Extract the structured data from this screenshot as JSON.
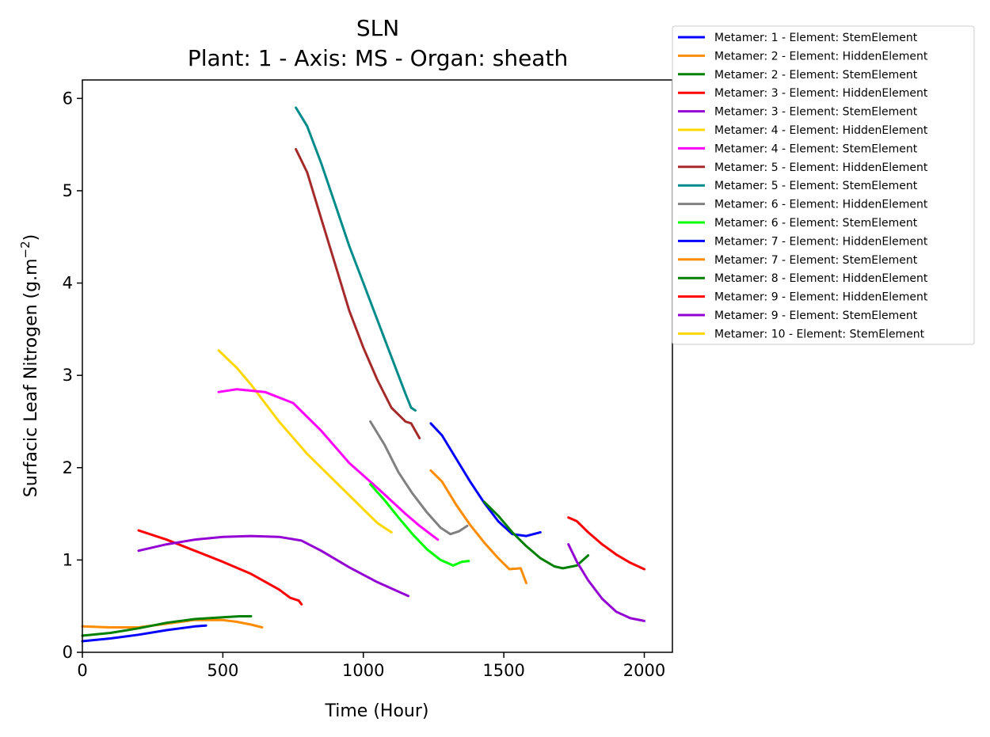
{
  "chart_data": {
    "type": "line",
    "title": "SLN",
    "subtitle": "Plant: 1 - Axis: MS - Organ: sheath",
    "xlabel": "Time (Hour)",
    "ylabel_main": "Surfacic Leaf Nitrogen (g.m",
    "ylabel_sup": "−2",
    "ylabel_end": ")",
    "xlim": [
      0,
      2100
    ],
    "ylim": [
      0,
      6.2
    ],
    "xticks": [
      0,
      500,
      1000,
      1500,
      2000
    ],
    "yticks": [
      0,
      1,
      2,
      3,
      4,
      5,
      6
    ],
    "grid": false,
    "legend_placement": "outside-top-right",
    "series": [
      {
        "name": "Metamer: 1 - Element: StemElement",
        "color": "#0000ff",
        "x": [
          0,
          100,
          200,
          300,
          400,
          440
        ],
        "y": [
          0.12,
          0.15,
          0.19,
          0.24,
          0.28,
          0.29
        ]
      },
      {
        "name": "Metamer: 2 - Element: HiddenElement",
        "color": "#ff8c00",
        "x": [
          0,
          100,
          200,
          300,
          400,
          500,
          550,
          600,
          640
        ],
        "y": [
          0.28,
          0.27,
          0.27,
          0.31,
          0.35,
          0.35,
          0.33,
          0.3,
          0.27
        ]
      },
      {
        "name": "Metamer: 2 - Element: StemElement",
        "color": "#008000",
        "x": [
          0,
          100,
          200,
          300,
          400,
          500,
          560,
          600
        ],
        "y": [
          0.18,
          0.21,
          0.26,
          0.32,
          0.36,
          0.38,
          0.39,
          0.39
        ]
      },
      {
        "name": "Metamer: 3 - Element: HiddenElement",
        "color": "#ff0000",
        "x": [
          200,
          300,
          400,
          500,
          600,
          700,
          740,
          770,
          780
        ],
        "y": [
          1.32,
          1.22,
          1.1,
          0.98,
          0.85,
          0.68,
          0.59,
          0.56,
          0.52
        ]
      },
      {
        "name": "Metamer: 3 - Element: StemElement",
        "color": "#9400d3",
        "x": [
          200,
          300,
          400,
          500,
          600,
          700,
          780,
          850,
          950,
          1050,
          1160
        ],
        "y": [
          1.1,
          1.17,
          1.22,
          1.25,
          1.26,
          1.25,
          1.21,
          1.1,
          0.92,
          0.76,
          0.61
        ]
      },
      {
        "name": "Metamer: 4 - Element: HiddenElement",
        "color": "#ffd700",
        "x": [
          485,
          550,
          600,
          700,
          800,
          900,
          1000,
          1050,
          1100
        ],
        "y": [
          3.27,
          3.08,
          2.9,
          2.5,
          2.15,
          1.85,
          1.55,
          1.4,
          1.3
        ]
      },
      {
        "name": "Metamer: 4 - Element: StemElement",
        "color": "#ff00ff",
        "x": [
          485,
          550,
          650,
          750,
          850,
          950,
          1050,
          1150,
          1200,
          1265
        ],
        "y": [
          2.82,
          2.85,
          2.82,
          2.7,
          2.4,
          2.05,
          1.78,
          1.5,
          1.37,
          1.22
        ]
      },
      {
        "name": "Metamer: 5 - Element: HiddenElement",
        "color": "#a52a2a",
        "x": [
          760,
          800,
          850,
          900,
          950,
          1000,
          1050,
          1100,
          1150,
          1170,
          1200
        ],
        "y": [
          5.45,
          5.2,
          4.7,
          4.2,
          3.7,
          3.3,
          2.95,
          2.65,
          2.5,
          2.48,
          2.32
        ]
      },
      {
        "name": "Metamer: 5 - Element: StemElement",
        "color": "#008b8b",
        "x": [
          760,
          800,
          850,
          900,
          950,
          1000,
          1050,
          1100,
          1150,
          1170,
          1185
        ],
        "y": [
          5.9,
          5.7,
          5.3,
          4.85,
          4.4,
          4.0,
          3.6,
          3.2,
          2.8,
          2.65,
          2.62
        ]
      },
      {
        "name": "Metamer: 6 - Element: HiddenElement",
        "color": "#808080",
        "x": [
          1025,
          1075,
          1125,
          1175,
          1225,
          1275,
          1310,
          1340,
          1370
        ],
        "y": [
          2.5,
          2.25,
          1.95,
          1.72,
          1.52,
          1.35,
          1.28,
          1.31,
          1.37
        ]
      },
      {
        "name": "Metamer: 6 - Element: StemElement",
        "color": "#00ff00",
        "x": [
          1025,
          1075,
          1125,
          1175,
          1225,
          1275,
          1320,
          1350,
          1375
        ],
        "y": [
          1.82,
          1.65,
          1.46,
          1.28,
          1.12,
          1.0,
          0.94,
          0.98,
          0.99
        ]
      },
      {
        "name": "Metamer: 7 - Element: HiddenElement",
        "color": "#0000ff",
        "x": [
          1240,
          1280,
          1330,
          1380,
          1430,
          1480,
          1530,
          1580,
          1630
        ],
        "y": [
          2.48,
          2.35,
          2.1,
          1.85,
          1.62,
          1.42,
          1.28,
          1.26,
          1.3
        ]
      },
      {
        "name": "Metamer: 7 - Element: StemElement",
        "color": "#ff8c00",
        "x": [
          1240,
          1280,
          1330,
          1380,
          1430,
          1480,
          1520,
          1560,
          1580
        ],
        "y": [
          1.97,
          1.85,
          1.6,
          1.38,
          1.19,
          1.02,
          0.9,
          0.91,
          0.75
        ]
      },
      {
        "name": "Metamer: 8 - Element: HiddenElement",
        "color": "#008000",
        "x": [
          1430,
          1480,
          1530,
          1580,
          1630,
          1680,
          1710,
          1760,
          1800
        ],
        "y": [
          1.63,
          1.48,
          1.3,
          1.15,
          1.02,
          0.93,
          0.91,
          0.94,
          1.05
        ]
      },
      {
        "name": "Metamer: 9 - Element: HiddenElement",
        "color": "#ff0000",
        "x": [
          1730,
          1760,
          1800,
          1850,
          1900,
          1950,
          2000
        ],
        "y": [
          1.46,
          1.42,
          1.3,
          1.17,
          1.06,
          0.97,
          0.9
        ]
      },
      {
        "name": "Metamer: 9 - Element: StemElement",
        "color": "#9400d3",
        "x": [
          1730,
          1760,
          1800,
          1850,
          1900,
          1950,
          2000
        ],
        "y": [
          1.17,
          0.98,
          0.78,
          0.58,
          0.44,
          0.37,
          0.34
        ]
      },
      {
        "name": "Metamer: 10 - Element: StemElement",
        "color": "#ffd700",
        "x": [],
        "y": []
      }
    ]
  }
}
